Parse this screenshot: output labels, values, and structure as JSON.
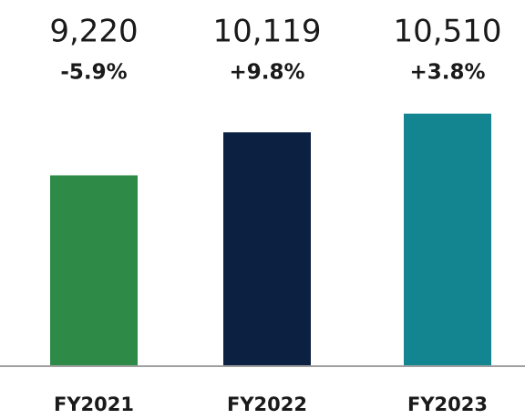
{
  "chart_data": {
    "type": "bar",
    "categories": [
      "FY2021",
      "FY2022",
      "FY2023"
    ],
    "values": [
      9220,
      10119,
      10510
    ],
    "value_labels": [
      "9,220",
      "10,119",
      "10,510"
    ],
    "changes": [
      -5.9,
      9.8,
      3.8
    ],
    "change_labels": [
      "-5.9%",
      "+9.8%",
      "+3.8%"
    ],
    "colors": [
      "#2e8b47",
      "#0c2042",
      "#138591"
    ],
    "ylim": [
      5250,
      11000
    ]
  }
}
